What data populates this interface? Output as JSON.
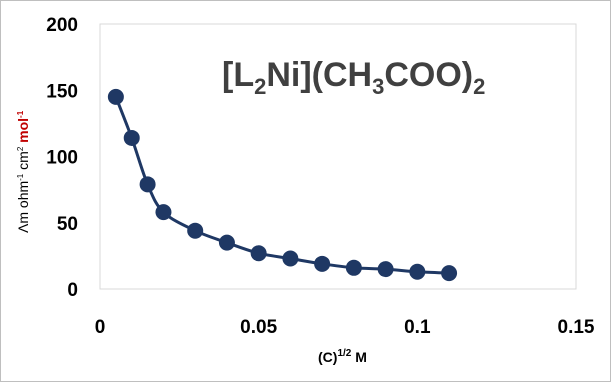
{
  "chart_data": {
    "type": "scatter",
    "title_parts": {
      "open": "[L",
      "sub1": "2",
      "mid": "Ni](CH",
      "sub2": "3",
      "mid2": "COO)",
      "sub3": "2"
    },
    "xlabel_parts": {
      "base": "(C)",
      "sup": "1/2",
      "unit": " M"
    },
    "ylabel_parts": {
      "a": "Λm ohm",
      "sup1": "-1",
      "b": " cm",
      "sup2": "2",
      "c": " mol",
      "sup3": "-1"
    },
    "xlim": [
      0,
      0.15
    ],
    "ylim": [
      0,
      200
    ],
    "x_ticks": [
      "0",
      "0.05",
      "0.1",
      "0.15"
    ],
    "y_ticks": [
      "0",
      "50",
      "100",
      "150",
      "200"
    ],
    "x_tick_values": [
      0,
      0.05,
      0.1,
      0.15
    ],
    "y_tick_values": [
      0,
      50,
      100,
      150,
      200
    ],
    "grid": false,
    "marker_color": "#1f3864",
    "line_color": "#1f3864",
    "unit_highlight_color": "#c00000",
    "series": [
      {
        "x": [
          0.005,
          0.01,
          0.015,
          0.02,
          0.03,
          0.04,
          0.05,
          0.06,
          0.07,
          0.08,
          0.09,
          0.1,
          0.11
        ],
        "y": [
          145,
          114,
          79,
          58,
          44,
          35,
          27,
          23,
          19,
          16,
          15,
          13,
          12
        ]
      }
    ]
  }
}
